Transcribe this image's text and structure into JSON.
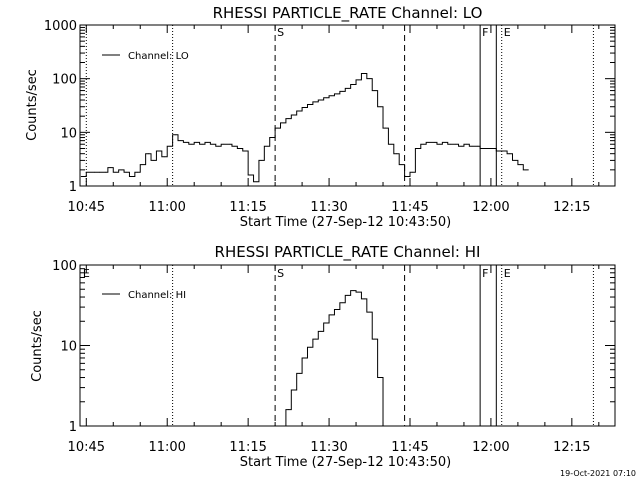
{
  "charts": [
    {
      "chart_data": {
        "type": "line",
        "title": "RHESSI PARTICLE_RATE Channel: LO",
        "xlabel": "Start Time (27-Sep-12 10:43:50)",
        "ylabel": "Counts/sec",
        "y_scale": "log",
        "ylim": [
          1,
          1000
        ],
        "xlim": [
          "10:43:50",
          "12:23:00"
        ],
        "x_ticks": [
          "10:45",
          "11:00",
          "11:15",
          "11:30",
          "11:45",
          "12:00",
          "12:15"
        ],
        "y_ticks": [
          "1",
          "10",
          "100",
          "1000"
        ],
        "legend": "top-left",
        "series": [
          {
            "name": "Channel: LO",
            "x": [
              "10:44",
              "10:45",
              "10:46",
              "10:47",
              "10:48",
              "10:49",
              "10:50",
              "10:51",
              "10:52",
              "10:53",
              "10:54",
              "10:55",
              "10:56",
              "10:57",
              "10:58",
              "10:59",
              "11:00",
              "11:01",
              "11:02",
              "11:03",
              "11:04",
              "11:05",
              "11:06",
              "11:07",
              "11:08",
              "11:09",
              "11:10",
              "11:11",
              "11:12",
              "11:13",
              "11:14",
              "11:15",
              "11:16",
              "11:17",
              "11:18",
              "11:19",
              "11:20",
              "11:21",
              "11:22",
              "11:23",
              "11:24",
              "11:25",
              "11:26",
              "11:27",
              "11:28",
              "11:29",
              "11:30",
              "11:31",
              "11:32",
              "11:33",
              "11:34",
              "11:35",
              "11:36",
              "11:37",
              "11:38",
              "11:39",
              "11:40",
              "11:41",
              "11:42",
              "11:43",
              "11:44",
              "11:45",
              "11:46",
              "11:47",
              "11:48",
              "11:49",
              "11:50",
              "11:51",
              "11:52",
              "11:53",
              "11:54",
              "11:55",
              "11:56",
              "11:57",
              "11:58",
              "11:59",
              "12:00",
              "12:01",
              "12:02",
              "12:03",
              "12:04",
              "12:05",
              "12:06"
            ],
            "values": [
              1.5,
              1.8,
              1.8,
              1.8,
              1.8,
              2.2,
              1.8,
              2.0,
              1.8,
              1.5,
              1.8,
              2.5,
              4.0,
              3.0,
              4.5,
              3.5,
              5.5,
              9.0,
              7.0,
              6.5,
              6.0,
              6.5,
              6.0,
              6.5,
              6.0,
              5.5,
              6.0,
              6.0,
              5.5,
              5.0,
              4.5,
              1.6,
              1.2,
              3.0,
              5.5,
              8.0,
              12,
              15,
              18,
              21,
              25,
              29,
              33,
              37,
              40,
              44,
              48,
              52,
              58,
              66,
              78,
              95,
              125,
              100,
              60,
              30,
              12,
              6.0,
              4.0,
              2.5,
              1.5,
              1.8,
              5.0,
              6.0,
              6.5,
              6.5,
              6.0,
              6.5,
              6.0,
              6.0,
              5.5,
              6.0,
              5.5,
              5.5,
              5.0,
              5.0,
              5.0,
              4.5,
              4.5,
              4.0,
              3.0,
              2.5,
              2.0
            ]
          }
        ],
        "annotations": [
          {
            "label": "",
            "x": "10:45",
            "style": "dotted"
          },
          {
            "label": "",
            "x": "11:01",
            "style": "dotted"
          },
          {
            "label": "S",
            "x": "11:20",
            "style": "dashed"
          },
          {
            "label": "",
            "x": "11:44",
            "style": "dashed"
          },
          {
            "label": "F",
            "x": "11:58",
            "style": "solid"
          },
          {
            "label": "",
            "x": "12:01",
            "style": "solid"
          },
          {
            "label": "E",
            "x": "12:02",
            "style": "dotted"
          },
          {
            "label": "",
            "x": "12:19",
            "style": "dotted"
          }
        ]
      }
    },
    {
      "chart_data": {
        "type": "line",
        "title": "RHESSI PARTICLE_RATE Channel: HI",
        "xlabel": "Start Time (27-Sep-12 10:43:50)",
        "ylabel": "Counts/sec",
        "y_scale": "log",
        "ylim": [
          1,
          100
        ],
        "xlim": [
          "10:43:50",
          "12:23:00"
        ],
        "x_ticks": [
          "10:45",
          "11:00",
          "11:15",
          "11:30",
          "11:45",
          "12:00",
          "12:15"
        ],
        "y_ticks": [
          "1",
          "10",
          "100"
        ],
        "legend": "top-left",
        "series": [
          {
            "name": "Channel: HI",
            "x": [
              "11:21",
              "11:22",
              "11:23",
              "11:24",
              "11:25",
              "11:26",
              "11:27",
              "11:28",
              "11:29",
              "11:30",
              "11:31",
              "11:32",
              "11:33",
              "11:34",
              "11:35",
              "11:36",
              "11:37",
              "11:38",
              "11:39",
              "11:40"
            ],
            "values": [
              1.0,
              1.6,
              2.8,
              4.5,
              7.0,
              9.5,
              12,
              15,
              19,
              24,
              28,
              34,
              42,
              48,
              46,
              38,
              26,
              12,
              4.0,
              1.0
            ]
          }
        ],
        "annotations": [
          {
            "label": "E",
            "x": "10:44",
            "style": "none"
          },
          {
            "label": "",
            "x": "11:01",
            "style": "dotted"
          },
          {
            "label": "S",
            "x": "11:20",
            "style": "dashed"
          },
          {
            "label": "",
            "x": "11:44",
            "style": "dashed"
          },
          {
            "label": "F",
            "x": "11:58",
            "style": "solid"
          },
          {
            "label": "",
            "x": "12:01",
            "style": "solid"
          },
          {
            "label": "E",
            "x": "12:02",
            "style": "dotted"
          },
          {
            "label": "",
            "x": "12:19",
            "style": "dotted"
          }
        ]
      }
    }
  ],
  "timestamp": "19-Oct-2021 07:10"
}
